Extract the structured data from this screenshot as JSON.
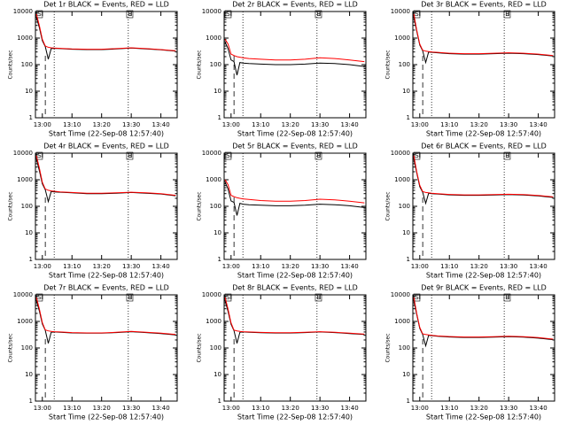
{
  "chart_data": [
    {
      "type": "line",
      "title": "Det 1r BLACK = Events, RED = LLD",
      "xlabel": "Start Time (22-Sep-08 12:57:40)",
      "ylabel": "Counts/sec",
      "log_y": true,
      "x": [
        778,
        779,
        780,
        781,
        782,
        783,
        784,
        786,
        790,
        795,
        800,
        805,
        810,
        815,
        820,
        825
      ],
      "series": [
        {
          "color": "#000000",
          "values": [
            6000,
            2500,
            800,
            480,
            160,
            400,
            410,
            400,
            380,
            370,
            370,
            390,
            420,
            390,
            360,
            320
          ]
        },
        {
          "color": "#ff0000",
          "values": [
            8000,
            3000,
            900,
            500,
            450,
            430,
            420,
            410,
            390,
            380,
            380,
            400,
            430,
            400,
            370,
            330
          ]
        }
      ],
      "xlim": [
        777.67,
        825.5
      ],
      "xticks": [
        {
          "value": 780,
          "label": "13:00"
        },
        {
          "value": 790,
          "label": "13:10"
        },
        {
          "value": 800,
          "label": "13:20"
        },
        {
          "value": 810,
          "label": "13:30"
        },
        {
          "value": 820,
          "label": "13:40"
        }
      ],
      "ylim": [
        1,
        10000
      ],
      "yticks": [
        1,
        10,
        100,
        1000,
        10000
      ],
      "markers": [
        {
          "label": "S",
          "x": 779
        },
        {
          "label": "E",
          "x": 809.5
        }
      ],
      "vlines": [
        {
          "x": 781,
          "style": "dashed"
        },
        {
          "x": 784,
          "style": "dotted"
        },
        {
          "x": 809,
          "style": "dotted"
        }
      ]
    },
    {
      "type": "line",
      "title": "Det 2r BLACK = Events, RED = LLD",
      "xlabel": "Start Time (22-Sep-08 12:57:40)",
      "ylabel": "Counts/sec",
      "log_y": true,
      "x": [
        778,
        779,
        780,
        781,
        782,
        783,
        784,
        786,
        790,
        795,
        800,
        805,
        810,
        815,
        820,
        825
      ],
      "series": [
        {
          "color": "#000000",
          "values": [
            700,
            400,
            150,
            130,
            40,
            120,
            115,
            110,
            105,
            100,
            100,
            105,
            115,
            110,
            100,
            85
          ]
        },
        {
          "color": "#ff0000",
          "values": [
            900,
            600,
            250,
            220,
            200,
            190,
            180,
            170,
            160,
            150,
            150,
            160,
            180,
            170,
            150,
            130
          ]
        }
      ],
      "xlim": [
        777.67,
        825.5
      ],
      "xticks": [
        {
          "value": 780,
          "label": "13:00"
        },
        {
          "value": 790,
          "label": "13:10"
        },
        {
          "value": 800,
          "label": "13:20"
        },
        {
          "value": 810,
          "label": "13:30"
        },
        {
          "value": 820,
          "label": "13:40"
        }
      ],
      "ylim": [
        1,
        10000
      ],
      "yticks": [
        1,
        10,
        100,
        1000,
        10000
      ],
      "markers": [
        {
          "label": "S",
          "x": 779
        },
        {
          "label": "E",
          "x": 809.5
        }
      ],
      "vlines": [
        {
          "x": 781,
          "style": "dashed"
        },
        {
          "x": 784,
          "style": "dotted"
        },
        {
          "x": 809,
          "style": "dotted"
        }
      ]
    },
    {
      "type": "line",
      "title": "Det 3r BLACK = Events, RED = LLD",
      "xlabel": "Start Time (22-Sep-08 12:57:40)",
      "ylabel": "Counts/sec",
      "log_y": true,
      "x": [
        778,
        779,
        780,
        781,
        782,
        783,
        784,
        786,
        790,
        795,
        800,
        805,
        810,
        815,
        820,
        825
      ],
      "series": [
        {
          "color": "#000000",
          "values": [
            6000,
            1800,
            550,
            330,
            120,
            300,
            290,
            280,
            260,
            250,
            250,
            260,
            270,
            260,
            240,
            210
          ]
        },
        {
          "color": "#ff0000",
          "values": [
            8000,
            2000,
            600,
            350,
            320,
            310,
            300,
            290,
            270,
            260,
            260,
            270,
            280,
            270,
            250,
            220
          ]
        }
      ],
      "xlim": [
        777.67,
        825.5
      ],
      "xticks": [
        {
          "value": 780,
          "label": "13:00"
        },
        {
          "value": 790,
          "label": "13:10"
        },
        {
          "value": 800,
          "label": "13:20"
        },
        {
          "value": 810,
          "label": "13:30"
        },
        {
          "value": 820,
          "label": "13:40"
        }
      ],
      "ylim": [
        1,
        10000
      ],
      "yticks": [
        1,
        10,
        100,
        1000,
        10000
      ],
      "markers": [
        {
          "label": "S",
          "x": 779
        },
        {
          "label": "E",
          "x": 809.5
        }
      ],
      "vlines": [
        {
          "x": 781,
          "style": "dashed"
        },
        {
          "x": 784,
          "style": "dotted"
        },
        {
          "x": 808.5,
          "style": "dotted"
        }
      ]
    },
    {
      "type": "line",
      "title": "Det 4r BLACK = Events, RED = LLD",
      "xlabel": "Start Time (22-Sep-08 12:57:40)",
      "ylabel": "Counts/sec",
      "log_y": true,
      "x": [
        778,
        779,
        780,
        781,
        782,
        783,
        784,
        786,
        790,
        795,
        800,
        805,
        810,
        815,
        820,
        825
      ],
      "series": [
        {
          "color": "#000000",
          "values": [
            6000,
            2200,
            700,
            420,
            150,
            360,
            350,
            340,
            320,
            300,
            300,
            310,
            330,
            310,
            290,
            250
          ]
        },
        {
          "color": "#ff0000",
          "values": [
            8000,
            2800,
            800,
            450,
            400,
            380,
            370,
            350,
            330,
            310,
            310,
            320,
            340,
            320,
            300,
            260
          ]
        }
      ],
      "xlim": [
        777.67,
        825.5
      ],
      "xticks": [
        {
          "value": 780,
          "label": "13:00"
        },
        {
          "value": 790,
          "label": "13:10"
        },
        {
          "value": 800,
          "label": "13:20"
        },
        {
          "value": 810,
          "label": "13:30"
        },
        {
          "value": 820,
          "label": "13:40"
        }
      ],
      "ylim": [
        1,
        10000
      ],
      "yticks": [
        1,
        10,
        100,
        1000,
        10000
      ],
      "markers": [
        {
          "label": "S",
          "x": 779
        },
        {
          "label": "E",
          "x": 809.5
        }
      ],
      "vlines": [
        {
          "x": 781,
          "style": "dashed"
        },
        {
          "x": 784,
          "style": "dotted"
        },
        {
          "x": 809,
          "style": "dotted"
        }
      ]
    },
    {
      "type": "line",
      "title": "Det 5r BLACK = Events, RED = LLD",
      "xlabel": "Start Time (22-Sep-08 12:57:40)",
      "ylabel": "Counts/sec",
      "log_y": true,
      "x": [
        778,
        779,
        780,
        781,
        782,
        783,
        784,
        786,
        790,
        795,
        800,
        805,
        810,
        815,
        820,
        825
      ],
      "series": [
        {
          "color": "#000000",
          "values": [
            800,
            450,
            160,
            140,
            45,
            130,
            120,
            115,
            110,
            105,
            105,
            110,
            120,
            115,
            105,
            90
          ]
        },
        {
          "color": "#ff0000",
          "values": [
            1000,
            650,
            260,
            230,
            210,
            200,
            190,
            180,
            165,
            155,
            155,
            165,
            185,
            175,
            155,
            135
          ]
        }
      ],
      "xlim": [
        777.67,
        825.5
      ],
      "xticks": [
        {
          "value": 780,
          "label": "13:00"
        },
        {
          "value": 790,
          "label": "13:10"
        },
        {
          "value": 800,
          "label": "13:20"
        },
        {
          "value": 810,
          "label": "13:30"
        },
        {
          "value": 820,
          "label": "13:40"
        }
      ],
      "ylim": [
        1,
        10000
      ],
      "yticks": [
        1,
        10,
        100,
        1000,
        10000
      ],
      "markers": [
        {
          "label": "S",
          "x": 779
        },
        {
          "label": "E",
          "x": 809.5
        }
      ],
      "vlines": [
        {
          "x": 781,
          "style": "dashed"
        },
        {
          "x": 784,
          "style": "dotted"
        },
        {
          "x": 809,
          "style": "dotted"
        }
      ]
    },
    {
      "type": "line",
      "title": "Det 6r BLACK = Events, RED = LLD",
      "xlabel": "Start Time (22-Sep-08 12:57:40)",
      "ylabel": "Counts/sec",
      "log_y": true,
      "x": [
        778,
        779,
        780,
        781,
        782,
        783,
        784,
        786,
        790,
        795,
        800,
        805,
        810,
        815,
        820,
        825
      ],
      "series": [
        {
          "color": "#000000",
          "values": [
            6000,
            1800,
            550,
            340,
            130,
            310,
            300,
            290,
            270,
            260,
            260,
            265,
            275,
            265,
            245,
            215
          ]
        },
        {
          "color": "#ff0000",
          "values": [
            8000,
            2000,
            620,
            360,
            330,
            320,
            310,
            300,
            280,
            270,
            270,
            275,
            285,
            275,
            255,
            225
          ]
        }
      ],
      "xlim": [
        777.67,
        825.5
      ],
      "xticks": [
        {
          "value": 780,
          "label": "13:00"
        },
        {
          "value": 790,
          "label": "13:10"
        },
        {
          "value": 800,
          "label": "13:20"
        },
        {
          "value": 810,
          "label": "13:30"
        },
        {
          "value": 820,
          "label": "13:40"
        }
      ],
      "ylim": [
        1,
        10000
      ],
      "yticks": [
        1,
        10,
        100,
        1000,
        10000
      ],
      "markers": [
        {
          "label": "S",
          "x": 779
        },
        {
          "label": "E",
          "x": 809.5
        }
      ],
      "vlines": [
        {
          "x": 781,
          "style": "dashed"
        },
        {
          "x": 784,
          "style": "dotted"
        },
        {
          "x": 808.5,
          "style": "dotted"
        }
      ]
    },
    {
      "type": "line",
      "title": "Det 7r BLACK = Events, RED = LLD",
      "xlabel": "Start Time (22-Sep-08 12:57:40)",
      "ylabel": "Counts/sec",
      "log_y": true,
      "x": [
        778,
        779,
        780,
        781,
        782,
        783,
        784,
        786,
        790,
        795,
        800,
        805,
        810,
        815,
        820,
        825
      ],
      "series": [
        {
          "color": "#000000",
          "values": [
            6000,
            2500,
            800,
            460,
            150,
            390,
            400,
            390,
            370,
            360,
            360,
            380,
            410,
            380,
            350,
            310
          ]
        },
        {
          "color": "#ff0000",
          "values": [
            8000,
            3000,
            900,
            480,
            440,
            420,
            410,
            400,
            380,
            370,
            370,
            390,
            420,
            390,
            360,
            320
          ]
        }
      ],
      "xlim": [
        777.67,
        825.5
      ],
      "xticks": [
        {
          "value": 780,
          "label": "13:00"
        },
        {
          "value": 790,
          "label": "13:10"
        },
        {
          "value": 800,
          "label": "13:20"
        },
        {
          "value": 810,
          "label": "13:30"
        },
        {
          "value": 820,
          "label": "13:40"
        }
      ],
      "ylim": [
        1,
        10000
      ],
      "yticks": [
        1,
        10,
        100,
        1000,
        10000
      ],
      "markers": [
        {
          "label": "S",
          "x": 779
        },
        {
          "label": "E",
          "x": 809.5
        }
      ],
      "vlines": [
        {
          "x": 781,
          "style": "dashed"
        },
        {
          "x": 784,
          "style": "dotted"
        },
        {
          "x": 809,
          "style": "dotted"
        }
      ]
    },
    {
      "type": "line",
      "title": "Det 8r BLACK = Events, RED = LLD",
      "xlabel": "Start Time (22-Sep-08 12:57:40)",
      "ylabel": "Counts/sec",
      "log_y": true,
      "x": [
        778,
        779,
        780,
        781,
        782,
        783,
        784,
        786,
        790,
        795,
        800,
        805,
        810,
        815,
        820,
        825
      ],
      "series": [
        {
          "color": "#000000",
          "values": [
            6000,
            2400,
            780,
            450,
            150,
            390,
            400,
            390,
            375,
            365,
            365,
            380,
            400,
            380,
            350,
            320
          ]
        },
        {
          "color": "#ff0000",
          "values": [
            8000,
            2900,
            880,
            470,
            440,
            420,
            410,
            400,
            385,
            375,
            375,
            390,
            410,
            390,
            360,
            330
          ]
        }
      ],
      "xlim": [
        777.67,
        825.5
      ],
      "xticks": [
        {
          "value": 780,
          "label": "13:00"
        },
        {
          "value": 790,
          "label": "13:10"
        },
        {
          "value": 800,
          "label": "13:20"
        },
        {
          "value": 810,
          "label": "13:30"
        },
        {
          "value": 820,
          "label": "13:40"
        }
      ],
      "ylim": [
        1,
        10000
      ],
      "yticks": [
        1,
        10,
        100,
        1000,
        10000
      ],
      "markers": [
        {
          "label": "S",
          "x": 779
        },
        {
          "label": "E",
          "x": 809.5
        }
      ],
      "vlines": [
        {
          "x": 781,
          "style": "dashed"
        },
        {
          "x": 784,
          "style": "dotted"
        },
        {
          "x": 809,
          "style": "dotted"
        }
      ]
    },
    {
      "type": "line",
      "title": "Det 9r BLACK = Events, RED = LLD",
      "xlabel": "Start Time (22-Sep-08 12:57:40)",
      "ylabel": "Counts/sec",
      "log_y": true,
      "x": [
        778,
        779,
        780,
        781,
        782,
        783,
        784,
        786,
        790,
        795,
        800,
        805,
        810,
        815,
        820,
        825
      ],
      "series": [
        {
          "color": "#000000",
          "values": [
            6000,
            1800,
            550,
            320,
            120,
            300,
            290,
            275,
            260,
            250,
            250,
            255,
            265,
            255,
            235,
            205
          ]
        },
        {
          "color": "#ff0000",
          "values": [
            8000,
            2000,
            600,
            340,
            320,
            310,
            300,
            285,
            270,
            260,
            260,
            265,
            275,
            265,
            245,
            215
          ]
        }
      ],
      "xlim": [
        777.67,
        825.5
      ],
      "xticks": [
        {
          "value": 780,
          "label": "13:00"
        },
        {
          "value": 790,
          "label": "13:10"
        },
        {
          "value": 800,
          "label": "13:20"
        },
        {
          "value": 810,
          "label": "13:30"
        },
        {
          "value": 820,
          "label": "13:40"
        }
      ],
      "ylim": [
        1,
        10000
      ],
      "yticks": [
        1,
        10,
        100,
        1000,
        10000
      ],
      "markers": [
        {
          "label": "S",
          "x": 779
        },
        {
          "label": "E",
          "x": 809.5
        }
      ],
      "vlines": [
        {
          "x": 781,
          "style": "dashed"
        },
        {
          "x": 784,
          "style": "dotted"
        },
        {
          "x": 808.5,
          "style": "dotted"
        }
      ]
    }
  ]
}
